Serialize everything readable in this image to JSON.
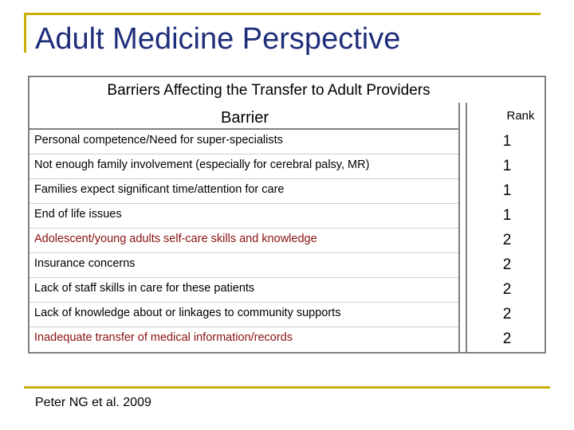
{
  "slide": {
    "title": "Adult Medicine Perspective",
    "citation": "Peter NG et al. 2009"
  },
  "table": {
    "caption": "Barriers Affecting the Transfer to Adult Providers",
    "header_barrier": "Barrier",
    "header_rank": "Rank",
    "rows": [
      {
        "barrier": "Personal competence/Need for super-specialists",
        "rank": "1"
      },
      {
        "barrier": "Not enough family involvement (especially for cerebral palsy, MR)",
        "rank": "1"
      },
      {
        "barrier": "Families expect significant time/attention for care",
        "rank": "1"
      },
      {
        "barrier": "End of life issues",
        "rank": "1"
      },
      {
        "barrier": "Adolescent/young adults self-care skills and knowledge",
        "rank": "2"
      },
      {
        "barrier": "Insurance concerns",
        "rank": "2"
      },
      {
        "barrier": "Lack of staff skills in care for these patients",
        "rank": "2"
      },
      {
        "barrier": "Lack of knowledge about or linkages to community supports",
        "rank": "2"
      },
      {
        "barrier": "Inadequate transfer of medical information/records",
        "rank": "2"
      }
    ]
  },
  "colors": {
    "title": "#1f2e7a",
    "accent_line": "#c8b100",
    "highlight_text": "#8a1010"
  }
}
